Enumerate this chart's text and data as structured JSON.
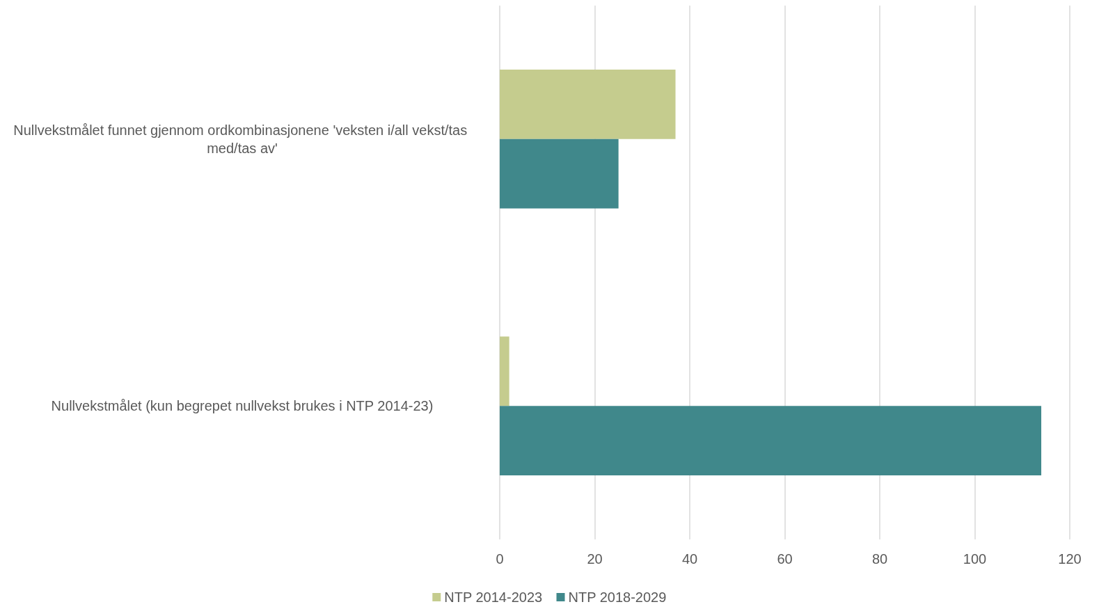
{
  "chart_data": {
    "type": "bar",
    "orientation": "horizontal",
    "categories": [
      "Nullvekstmålet funnet gjennom ordkombinasjonene 'veksten i/all vekst/tas med/tas av'",
      "Nullvekstmålet (kun begrepet nullvekst brukes i NTP 2014-23)"
    ],
    "series": [
      {
        "name": "NTP 2014-2023",
        "color": "#c5cc8e",
        "values": [
          37,
          2
        ]
      },
      {
        "name": "NTP 2018-2029",
        "color": "#40888b",
        "values": [
          25,
          114
        ]
      }
    ],
    "xlim": [
      0,
      120
    ],
    "xticks": [
      0,
      20,
      40,
      60,
      80,
      100,
      120
    ],
    "grid": "x",
    "legend": "bottom"
  }
}
